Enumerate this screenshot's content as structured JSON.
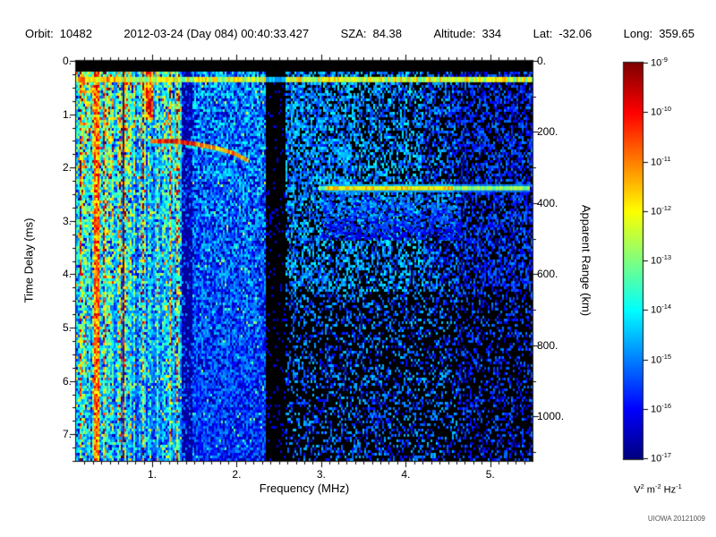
{
  "header": {
    "fields": [
      {
        "label": "Orbit:",
        "value": "10482"
      },
      {
        "label": "",
        "value": "2012-03-24 (Day 084) 00:40:33.427"
      },
      {
        "label": "SZA:",
        "value": "84.38"
      },
      {
        "label": "Altitude:",
        "value": "334"
      },
      {
        "label": "Lat:",
        "value": "-32.06"
      },
      {
        "label": "Long:",
        "value": "359.65"
      }
    ]
  },
  "chart_data": {
    "type": "heatmap",
    "title": "",
    "xlabel": "Frequency (MHz)",
    "ylabel_left": "Time Delay (ms)",
    "ylabel_right": "Apparent Range (km)",
    "x_range": [
      0.1,
      5.5
    ],
    "t_range": [
      0.0,
      7.5
    ],
    "range_per_ms_km": 150,
    "x_ticks": [
      {
        "v": 1,
        "label": "1."
      },
      {
        "v": 2,
        "label": "2."
      },
      {
        "v": 3,
        "label": "3."
      },
      {
        "v": 4,
        "label": "4."
      },
      {
        "v": 5,
        "label": "5."
      }
    ],
    "y_ticks_left": [
      {
        "v": 0,
        "label": "0."
      },
      {
        "v": 1,
        "label": "1."
      },
      {
        "v": 2,
        "label": "2."
      },
      {
        "v": 3,
        "label": "3."
      },
      {
        "v": 4,
        "label": "4."
      },
      {
        "v": 5,
        "label": "5."
      },
      {
        "v": 6,
        "label": "6."
      },
      {
        "v": 7,
        "label": "7."
      }
    ],
    "y_ticks_right": [
      {
        "km": 0,
        "label": "0."
      },
      {
        "km": 200,
        "label": "200."
      },
      {
        "km": 400,
        "label": "400."
      },
      {
        "km": 600,
        "label": "600."
      },
      {
        "km": 800,
        "label": "800."
      },
      {
        "km": 1000,
        "label": "1000."
      }
    ],
    "colorbar": {
      "scale": "log",
      "max": 1e-09,
      "min": 1e-17,
      "tick_exponents": [
        -9,
        -10,
        -11,
        -12,
        -13,
        -14,
        -15,
        -16,
        -17
      ],
      "unit_parts": [
        {
          "base": "V",
          "exp": "2"
        },
        {
          "base": "m",
          "exp": "-2"
        },
        {
          "base": "Hz",
          "exp": "-1"
        }
      ],
      "colormap": "jet",
      "top_color": "#c00000",
      "bottom_color": "#00007f"
    },
    "features": {
      "top_band": {
        "t": 0.3,
        "thickness_ms": 0.1,
        "intensity": 0.55
      },
      "noise_bands": [
        {
          "f_min": 0.1,
          "f_max": 1.33,
          "type": "striped",
          "intensity": 0.42
        },
        {
          "f_min": 1.33,
          "f_max": 1.47,
          "type": "dark",
          "intensity": 0.08
        },
        {
          "f_min": 1.47,
          "f_max": 2.33,
          "type": "speckle",
          "intensity": 0.26
        },
        {
          "f_min": 2.33,
          "f_max": 2.56,
          "type": "blank",
          "intensity": 0.02
        },
        {
          "f_min": 2.56,
          "f_max": 5.51,
          "type": "sparse",
          "intensity": 0.18
        }
      ],
      "bright_stripes": [
        {
          "f": 0.33,
          "width": 0.05,
          "t_max": 7.5,
          "intensity": 0.8
        },
        {
          "f": 0.95,
          "width": 0.09,
          "t_max": 1.1,
          "intensity": 0.85
        }
      ],
      "ionosphere_trace": {
        "points": [
          [
            0.98,
            1.5
          ],
          [
            1.25,
            1.5
          ],
          [
            1.5,
            1.55
          ],
          [
            1.75,
            1.63
          ],
          [
            1.95,
            1.72
          ],
          [
            2.12,
            1.86
          ]
        ],
        "intensity": 0.7
      },
      "ground_echo": {
        "f_min": 2.97,
        "f_max": 5.45,
        "t": 2.38,
        "intensity": 0.5,
        "bright_f": [
          3.05,
          4.55
        ],
        "diffuse": {
          "f_min": 3.0,
          "f_max": 4.65,
          "t_min": 2.5,
          "t_max": 3.35,
          "intensity": 0.25
        }
      }
    }
  },
  "watermark": "UIOWA 20121009"
}
